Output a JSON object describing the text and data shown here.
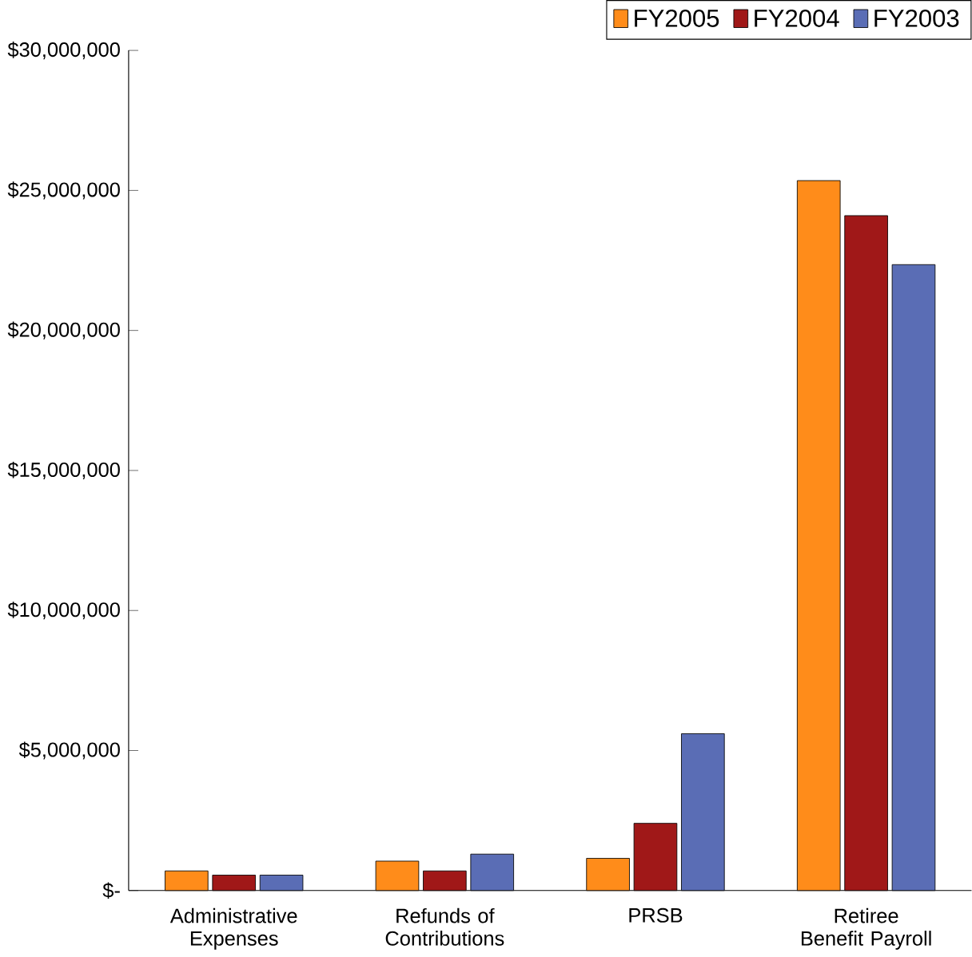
{
  "chart_data": {
    "type": "bar",
    "categories": [
      "Administrative Expenses",
      "Refunds of Contributions",
      "PRSB",
      "Retiree Benefit Payroll"
    ],
    "series": [
      {
        "name": "FY2005",
        "color": "#ff8c1a",
        "values": [
          700000,
          1050000,
          1150000,
          25350000
        ]
      },
      {
        "name": "FY2004",
        "color": "#a01818",
        "values": [
          550000,
          700000,
          2400000,
          24100000
        ]
      },
      {
        "name": "FY2003",
        "color": "#5a6db5",
        "values": [
          550000,
          1300000,
          5600000,
          22350000
        ]
      }
    ],
    "ylim": [
      0,
      30000000
    ],
    "yticks": [
      {
        "value": 0,
        "label": "$-"
      },
      {
        "value": 5000000,
        "label": "$5,000,000"
      },
      {
        "value": 10000000,
        "label": "$10,000,000"
      },
      {
        "value": 15000000,
        "label": "$15,000,000"
      },
      {
        "value": 20000000,
        "label": "$20,000,000"
      },
      {
        "value": 25000000,
        "label": "$25,000,000"
      },
      {
        "value": 30000000,
        "label": "$30,000,000"
      }
    ],
    "grid": false,
    "legend": "top right"
  }
}
